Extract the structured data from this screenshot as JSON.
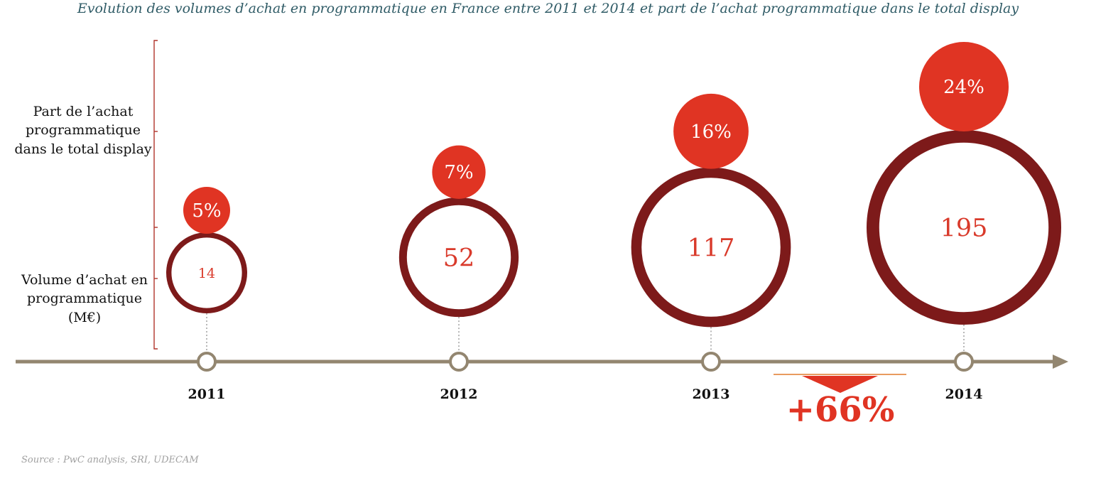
{
  "title": "Evolution des volumes d’achat en programmatique en France entre 2011 et 2014 et part de l’achat programmatique dans le total display",
  "source": "Source : PwC analysis, SRI, UDECAM",
  "labels": {
    "share": [
      "Part de l’achat",
      "programmatique",
      "dans le total display"
    ],
    "volume": [
      "Volume d’achat en",
      "programmatique",
      "(M€)"
    ]
  },
  "growth_label": "+66%",
  "colors": {
    "share": "#e03423",
    "ring": "#7d1a1a",
    "axis": "#938670",
    "title": "#2f5b66",
    "bracket": "#b0342b",
    "value_text": "#d93a2b"
  },
  "chart_data": {
    "type": "bubble-timeline",
    "title": "Evolution des volumes d’achat en programmatique en France entre 2011 et 2014 et part de l’achat programmatique dans le total display",
    "categories": [
      "2011",
      "2012",
      "2013",
      "2014"
    ],
    "series": [
      {
        "name": "Volume d’achat en programmatique (M€)",
        "values": [
          14,
          52,
          117,
          195
        ],
        "labels": [
          "14",
          "52",
          "117",
          "195"
        ]
      },
      {
        "name": "Part de l’achat programmatique dans le total display",
        "values": [
          5,
          7,
          16,
          24
        ],
        "labels": [
          "5%",
          "7%",
          "16%",
          "24%"
        ]
      }
    ]
  }
}
